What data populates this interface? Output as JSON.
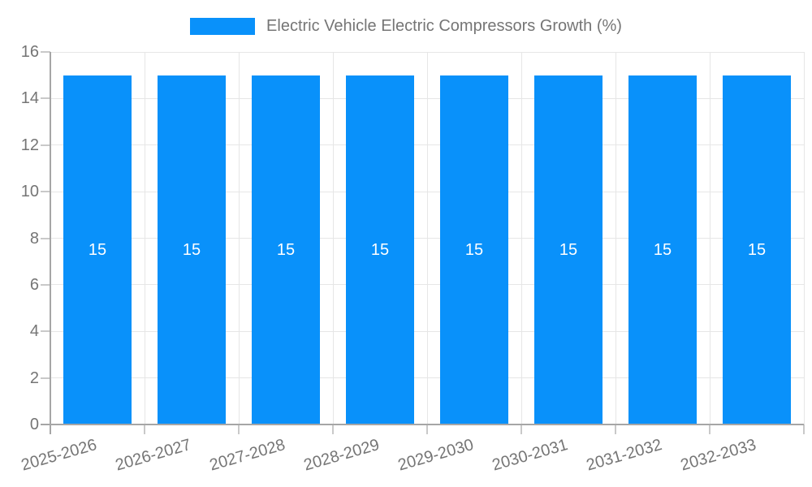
{
  "legend": {
    "label": "Electric Vehicle Electric Compressors Growth (%)"
  },
  "chart_data": {
    "type": "bar",
    "title": "Electric Vehicle Electric Compressors Growth (%)",
    "categories": [
      "2025-2026",
      "2026-2027",
      "2027-2028",
      "2028-2029",
      "2029-2030",
      "2030-2031",
      "2031-2032",
      "2032-2033"
    ],
    "values": [
      15,
      15,
      15,
      15,
      15,
      15,
      15,
      15
    ],
    "bar_value_labels": [
      "15",
      "15",
      "15",
      "15",
      "15",
      "15",
      "15",
      "15"
    ],
    "ytick_labels": [
      "0",
      "2",
      "4",
      "6",
      "8",
      "10",
      "12",
      "14",
      "16"
    ],
    "xlabel": "",
    "ylabel": "",
    "ylim": [
      0,
      16
    ],
    "ytick_step": 2,
    "grid": true,
    "legend_position": "top-center",
    "colors": {
      "bar": "#0991fa",
      "grid": "#e6e6e6",
      "axis": "#a6a6a6",
      "tick_mark": "#c9c9c9",
      "tick_text": "#757575",
      "bar_label": "#ffffff",
      "background": "#ffffff"
    }
  }
}
